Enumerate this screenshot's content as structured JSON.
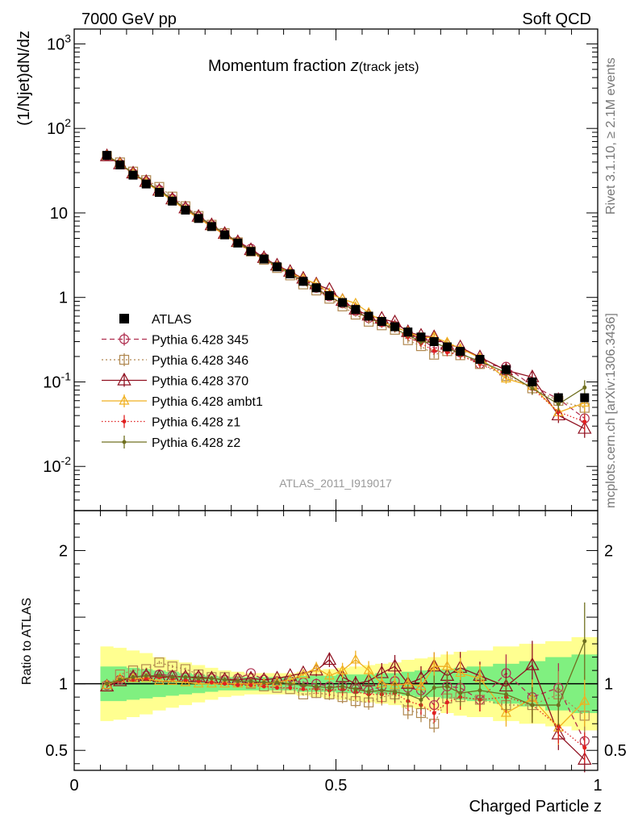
{
  "header": {
    "left": "7000 GeV pp",
    "right": "Soft QCD"
  },
  "side_labels": {
    "rivet": "Rivet 3.1.10, ≥ 2.1M events",
    "mcplots": "mcplots.cern.ch [arXiv:1306.3436]"
  },
  "colors": {
    "data": "#000000",
    "p345": "#b03050",
    "p346": "#b08850",
    "p370": "#901020",
    "ambt1": "#f0b020",
    "z1": "#e02020",
    "z2": "#707020",
    "band_inner": "#80f080",
    "band_outer": "#ffff90"
  },
  "chart_data": {
    "type": "line",
    "title_main": "Momentum fraction ",
    "title_var": "z",
    "title_sub": "(track jets)",
    "analysis_label": "ATLAS_2011_I919017",
    "xlabel": "Charged Particle z",
    "ylabel_top": "(1/Njet)dN/dz",
    "ylabel_ratio": "Ratio to ATLAS",
    "xlim": [
      0,
      1.0
    ],
    "ylim_top": [
      0.003,
      1500
    ],
    "ylim_ratio": [
      0.35,
      2.3
    ],
    "yscale_top": "log",
    "x_ticks": [
      "0",
      "0.5",
      "1"
    ],
    "y_ticks_top": [
      {
        "label": "10",
        "exp": "-2",
        "value": 0.01
      },
      {
        "label": "10",
        "exp": "-1",
        "value": 0.1
      },
      {
        "label": "1",
        "exp": "",
        "value": 1
      },
      {
        "label": "10",
        "exp": "",
        "value": 10
      },
      {
        "label": "10",
        "exp": "2",
        "value": 100
      },
      {
        "label": "10",
        "exp": "3",
        "value": 1000
      }
    ],
    "y_ticks_ratio": [
      {
        "label": "0.5",
        "value": 0.5
      },
      {
        "label": "1",
        "value": 1
      },
      {
        "label": "2",
        "value": 2
      }
    ],
    "legend_position": "center-left",
    "x": [
      0.0625,
      0.0875,
      0.1125,
      0.1375,
      0.1625,
      0.1875,
      0.2125,
      0.2375,
      0.2625,
      0.2875,
      0.3125,
      0.3375,
      0.3625,
      0.3875,
      0.4125,
      0.4375,
      0.4625,
      0.4875,
      0.5125,
      0.5375,
      0.5625,
      0.5875,
      0.6125,
      0.6375,
      0.6625,
      0.6875,
      0.7125,
      0.7375,
      0.775,
      0.825,
      0.875,
      0.925,
      0.975
    ],
    "data": {
      "name": "ATLAS",
      "values": [
        48,
        37,
        28,
        22,
        17.5,
        13.8,
        10.8,
        8.6,
        6.9,
        5.5,
        4.4,
        3.5,
        2.85,
        2.3,
        1.9,
        1.55,
        1.3,
        1.05,
        0.87,
        0.72,
        0.6,
        0.52,
        0.45,
        0.39,
        0.34,
        0.3,
        0.26,
        0.23,
        0.185,
        0.14,
        0.1,
        0.065,
        0.065
      ],
      "band_inner": [
        0.13,
        0.13,
        0.12,
        0.11,
        0.1,
        0.09,
        0.08,
        0.07,
        0.06,
        0.05,
        0.05,
        0.05,
        0.05,
        0.05,
        0.05,
        0.06,
        0.06,
        0.06,
        0.07,
        0.07,
        0.07,
        0.08,
        0.08,
        0.09,
        0.1,
        0.1,
        0.11,
        0.12,
        0.13,
        0.15,
        0.17,
        0.2,
        0.22
      ],
      "band_outer": [
        0.28,
        0.27,
        0.25,
        0.23,
        0.2,
        0.18,
        0.16,
        0.14,
        0.12,
        0.1,
        0.09,
        0.08,
        0.08,
        0.08,
        0.08,
        0.09,
        0.1,
        0.11,
        0.12,
        0.13,
        0.14,
        0.15,
        0.16,
        0.18,
        0.19,
        0.2,
        0.22,
        0.24,
        0.25,
        0.28,
        0.3,
        0.32,
        0.35
      ]
    },
    "series": [
      {
        "name": "Pythia 6.428 345",
        "key": "p345",
        "marker": "circle",
        "dash": "6,4",
        "ratio": [
          0.99,
          1.03,
          1.05,
          1.06,
          1.07,
          1.06,
          1.05,
          1.05,
          1.04,
          1.03,
          1.04,
          1.08,
          1.03,
          1.02,
          1.02,
          1.01,
          1.0,
          0.98,
          0.98,
          0.96,
          0.95,
          0.98,
          1.02,
          0.97,
          0.95,
          0.84,
          0.98,
          0.97,
          0.88,
          1.08,
          0.9,
          0.97,
          0.57
        ]
      },
      {
        "name": "Pythia 6.428 346",
        "key": "p346",
        "marker": "square",
        "dash": "2,3",
        "ratio": [
          0.98,
          1.07,
          1.1,
          1.11,
          1.16,
          1.13,
          1.11,
          1.07,
          1.05,
          1.05,
          1.02,
          1.0,
          0.98,
          0.97,
          0.96,
          0.92,
          0.93,
          0.92,
          0.9,
          0.87,
          0.86,
          0.9,
          0.92,
          0.8,
          0.78,
          0.7,
          0.89,
          0.9,
          0.88,
          0.84,
          0.84,
          0.92,
          0.76
        ]
      },
      {
        "name": "Pythia 6.428 370",
        "key": "p370",
        "marker": "triangle-open",
        "dash": "",
        "ratio": [
          0.98,
          1.02,
          1.05,
          1.06,
          1.05,
          1.05,
          1.05,
          1.05,
          1.04,
          1.03,
          1.03,
          1.04,
          1.03,
          1.04,
          1.06,
          1.08,
          1.1,
          1.18,
          1.05,
          1.0,
          1.02,
          1.08,
          1.13,
          1.0,
          1.04,
          1.13,
          1.06,
          1.12,
          1.06,
          0.98,
          1.14,
          0.62,
          0.43
        ]
      },
      {
        "name": "Pythia 6.428 ambt1",
        "key": "ambt1",
        "marker": "triangle-open",
        "dash": "",
        "ratio": [
          0.99,
          1.04,
          1.04,
          1.04,
          1.02,
          1.02,
          1.01,
          1.0,
          1.0,
          1.0,
          1.0,
          1.0,
          1.0,
          1.01,
          1.03,
          1.07,
          1.12,
          1.06,
          1.1,
          1.18,
          1.1,
          1.0,
          0.99,
          1.0,
          0.98,
          1.13,
          1.13,
          1.08,
          1.04,
          0.78,
          0.89,
          0.67,
          0.87
        ]
      },
      {
        "name": "Pythia 6.428 z1",
        "key": "z1",
        "marker": "dot",
        "dash": "1.5,2.5",
        "ratio": [
          1.0,
          1.02,
          1.03,
          1.04,
          1.05,
          1.04,
          1.03,
          1.02,
          1.01,
          1.0,
          0.99,
          0.99,
          0.98,
          0.97,
          0.97,
          0.96,
          0.96,
          0.95,
          0.96,
          0.94,
          0.92,
          0.92,
          0.93,
          0.87,
          0.84,
          0.78,
          0.86,
          0.9,
          0.88,
          0.9,
          0.84,
          0.68,
          0.52
        ]
      },
      {
        "name": "Pythia 6.428 z2",
        "key": "z2",
        "marker": "dot",
        "dash": "",
        "ratio": [
          1.0,
          1.03,
          1.05,
          1.06,
          1.06,
          1.05,
          1.05,
          1.04,
          1.04,
          1.03,
          1.02,
          1.02,
          1.01,
          1.01,
          1.0,
          0.99,
          0.98,
          0.97,
          0.98,
          0.96,
          0.94,
          0.95,
          0.94,
          0.92,
          0.88,
          0.97,
          0.98,
          0.93,
          0.95,
          0.92,
          0.84,
          0.84,
          1.32
        ]
      }
    ]
  }
}
